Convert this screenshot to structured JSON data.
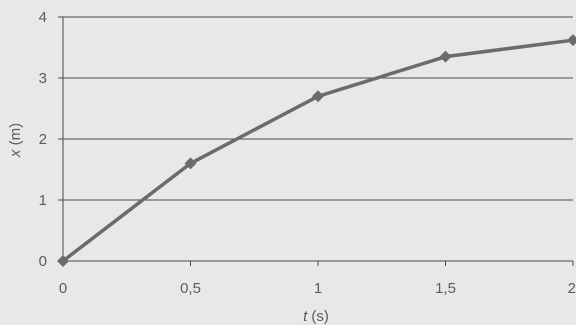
{
  "chart_data": {
    "type": "line",
    "title": "",
    "xlabel_var": "t",
    "xlabel_unit": " (s)",
    "ylabel_var": "x",
    "ylabel_unit": " (m)",
    "xlim": [
      0,
      2
    ],
    "ylim": [
      0,
      4
    ],
    "x_ticks": [
      0,
      0.5,
      1,
      1.5,
      2
    ],
    "x_tick_labels": [
      "0",
      "0,5",
      "1",
      "1,5",
      "2"
    ],
    "y_ticks": [
      0,
      1,
      2,
      3,
      4
    ],
    "y_tick_labels": [
      "0",
      "1",
      "2",
      "3",
      "4"
    ],
    "grid": "horizontal",
    "series": [
      {
        "x": [
          0,
          0.5,
          1,
          1.5,
          2
        ],
        "values": [
          0,
          1.6,
          2.7,
          3.35,
          3.62
        ],
        "marker": "diamond"
      }
    ],
    "colors": {
      "background": "#e8e8e9",
      "line": "#6b6b6b",
      "grid": "#4a4a4a",
      "text": "#5b5b5b"
    }
  }
}
